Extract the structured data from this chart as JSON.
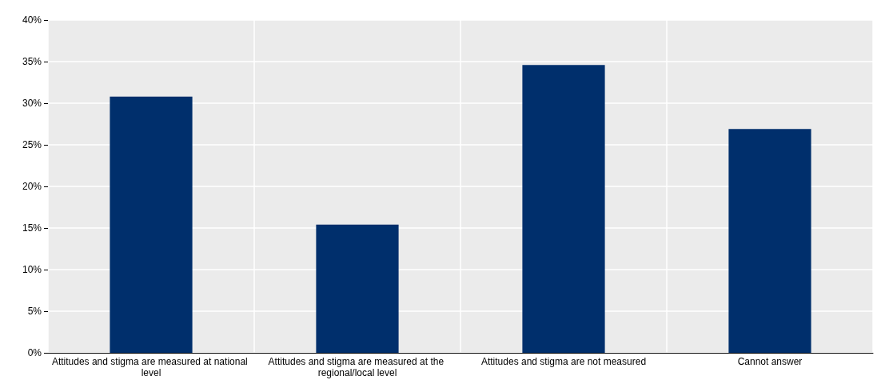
{
  "chart_data": {
    "type": "bar",
    "categories": [
      "Attitudes and stigma are measured at national level",
      "Attitudes and stigma are measured at the regional/local level",
      "Attitudes and stigma are not measured",
      "Cannot answer"
    ],
    "values": [
      30.8,
      15.4,
      34.6,
      26.9
    ],
    "color": "#002f6c",
    "ylim": [
      0,
      40
    ],
    "yticks": [
      {
        "value": 0,
        "label": "0%"
      },
      {
        "value": 5,
        "label": "5%"
      },
      {
        "value": 10,
        "label": "10%"
      },
      {
        "value": 15,
        "label": "15%"
      },
      {
        "value": 20,
        "label": "20%"
      },
      {
        "value": 25,
        "label": "25%"
      },
      {
        "value": 30,
        "label": "30%"
      },
      {
        "value": 35,
        "label": "35%"
      },
      {
        "value": 40,
        "label": "40%"
      }
    ],
    "grid": true
  }
}
